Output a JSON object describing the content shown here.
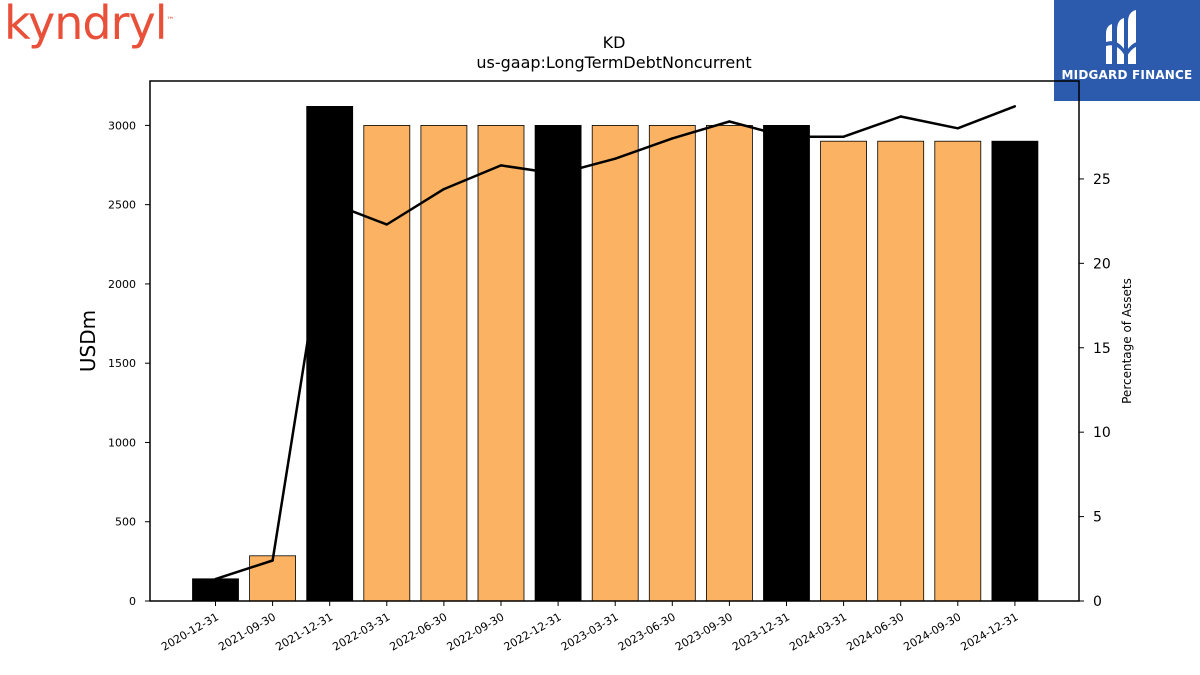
{
  "branding": {
    "left_logo_text": "kyndryl",
    "left_logo_mark": "™",
    "right_logo_text": "MIDGARD FINANCE",
    "left_logo_color": "#e8503a",
    "right_logo_bg": "#2c5aad"
  },
  "chart_data": {
    "type": "bar",
    "title": "KD",
    "subtitle": "us-gaap:LongTermDebtNoncurrent",
    "ylabel": "USDm",
    "y2label": "Percentage of Assets",
    "categories": [
      "2020-12-31",
      "2021-09-30",
      "2021-12-31",
      "2022-03-31",
      "2022-06-30",
      "2022-09-30",
      "2022-12-31",
      "2023-03-31",
      "2023-06-30",
      "2023-09-30",
      "2023-12-31",
      "2024-03-31",
      "2024-06-30",
      "2024-09-30",
      "2024-12-31"
    ],
    "series": [
      {
        "type": "bar",
        "values": [
          140,
          285,
          3120,
          3000,
          3000,
          3000,
          3000,
          3000,
          3000,
          3000,
          3000,
          2900,
          2900,
          2900,
          2900
        ],
        "fiscal_year_end": [
          true,
          false,
          true,
          false,
          false,
          false,
          true,
          false,
          false,
          false,
          true,
          false,
          false,
          false,
          true
        ],
        "colors": {
          "annual": "#000000",
          "quarterly": "#fbb363"
        }
      },
      {
        "type": "line",
        "axis": "right",
        "values": [
          1.3,
          2.4,
          23.6,
          22.3,
          24.4,
          25.8,
          25.3,
          26.2,
          27.4,
          28.4,
          27.5,
          27.5,
          28.7,
          28.0,
          29.3
        ],
        "color": "#000000"
      }
    ],
    "ylim": [
      0,
      3280
    ],
    "y2lim": [
      0,
      30.8
    ],
    "yticks": [
      0,
      500,
      1000,
      1500,
      2000,
      2500,
      3000
    ],
    "y2ticks": [
      0,
      5,
      10,
      15,
      20,
      25
    ],
    "grid": false,
    "legend": "none"
  }
}
